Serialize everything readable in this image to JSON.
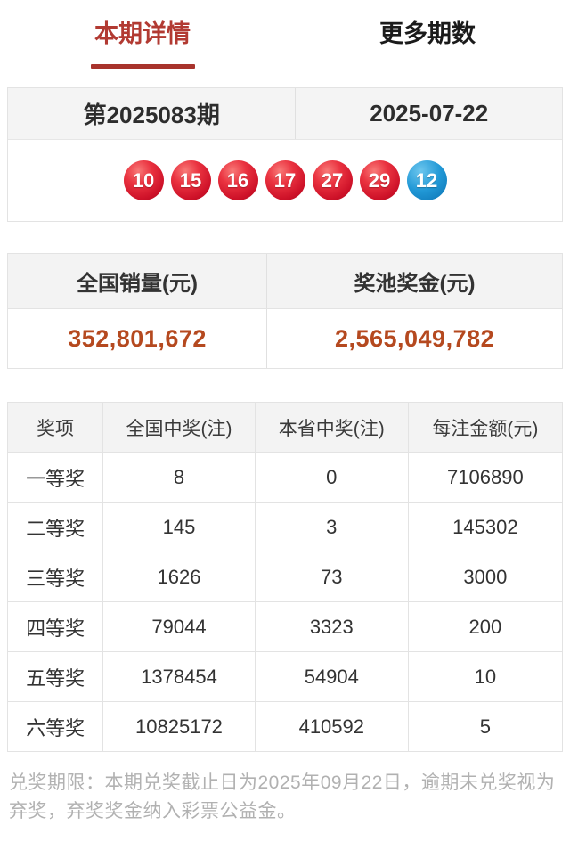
{
  "tabs": [
    {
      "label": "本期详情",
      "active": true
    },
    {
      "label": "更多期数",
      "active": false
    }
  ],
  "draw": {
    "period": "第2025083期",
    "date": "2025-07-22"
  },
  "balls": [
    {
      "number": "10",
      "color": "red"
    },
    {
      "number": "15",
      "color": "red"
    },
    {
      "number": "16",
      "color": "red"
    },
    {
      "number": "17",
      "color": "red"
    },
    {
      "number": "27",
      "color": "red"
    },
    {
      "number": "29",
      "color": "red"
    },
    {
      "number": "12",
      "color": "blue"
    }
  ],
  "stats": {
    "sales_label": "全国销量(元)",
    "sales_value": "352,801,672",
    "pool_label": "奖池奖金(元)",
    "pool_value": "2,565,049,782"
  },
  "prize_table": {
    "headers": [
      "奖项",
      "全国中奖(注)",
      "本省中奖(注)",
      "每注金额(元)"
    ],
    "rows": [
      {
        "tier": "一等奖",
        "national": "8",
        "province": "0",
        "amount": "7106890"
      },
      {
        "tier": "二等奖",
        "national": "145",
        "province": "3",
        "amount": "145302"
      },
      {
        "tier": "三等奖",
        "national": "1626",
        "province": "73",
        "amount": "3000"
      },
      {
        "tier": "四等奖",
        "national": "79044",
        "province": "3323",
        "amount": "200"
      },
      {
        "tier": "五等奖",
        "national": "1378454",
        "province": "54904",
        "amount": "10"
      },
      {
        "tier": "六等奖",
        "national": "10825172",
        "province": "410592",
        "amount": "5"
      }
    ]
  },
  "footer": {
    "notice": "兑奖期限：本期兑奖截止日为2025年09月22日，逾期未兑奖视为弃奖，弃奖奖金纳入彩票公益金。"
  },
  "colors": {
    "accent_red": "#b23a32",
    "underline_red": "#a8332c",
    "value_orange": "#b5491f",
    "prize_red": "#cb514d",
    "ball_red": "#cd1128",
    "ball_blue": "#1589cc",
    "header_gray": "#f3f3f3",
    "border_gray": "#e3e3e3"
  }
}
